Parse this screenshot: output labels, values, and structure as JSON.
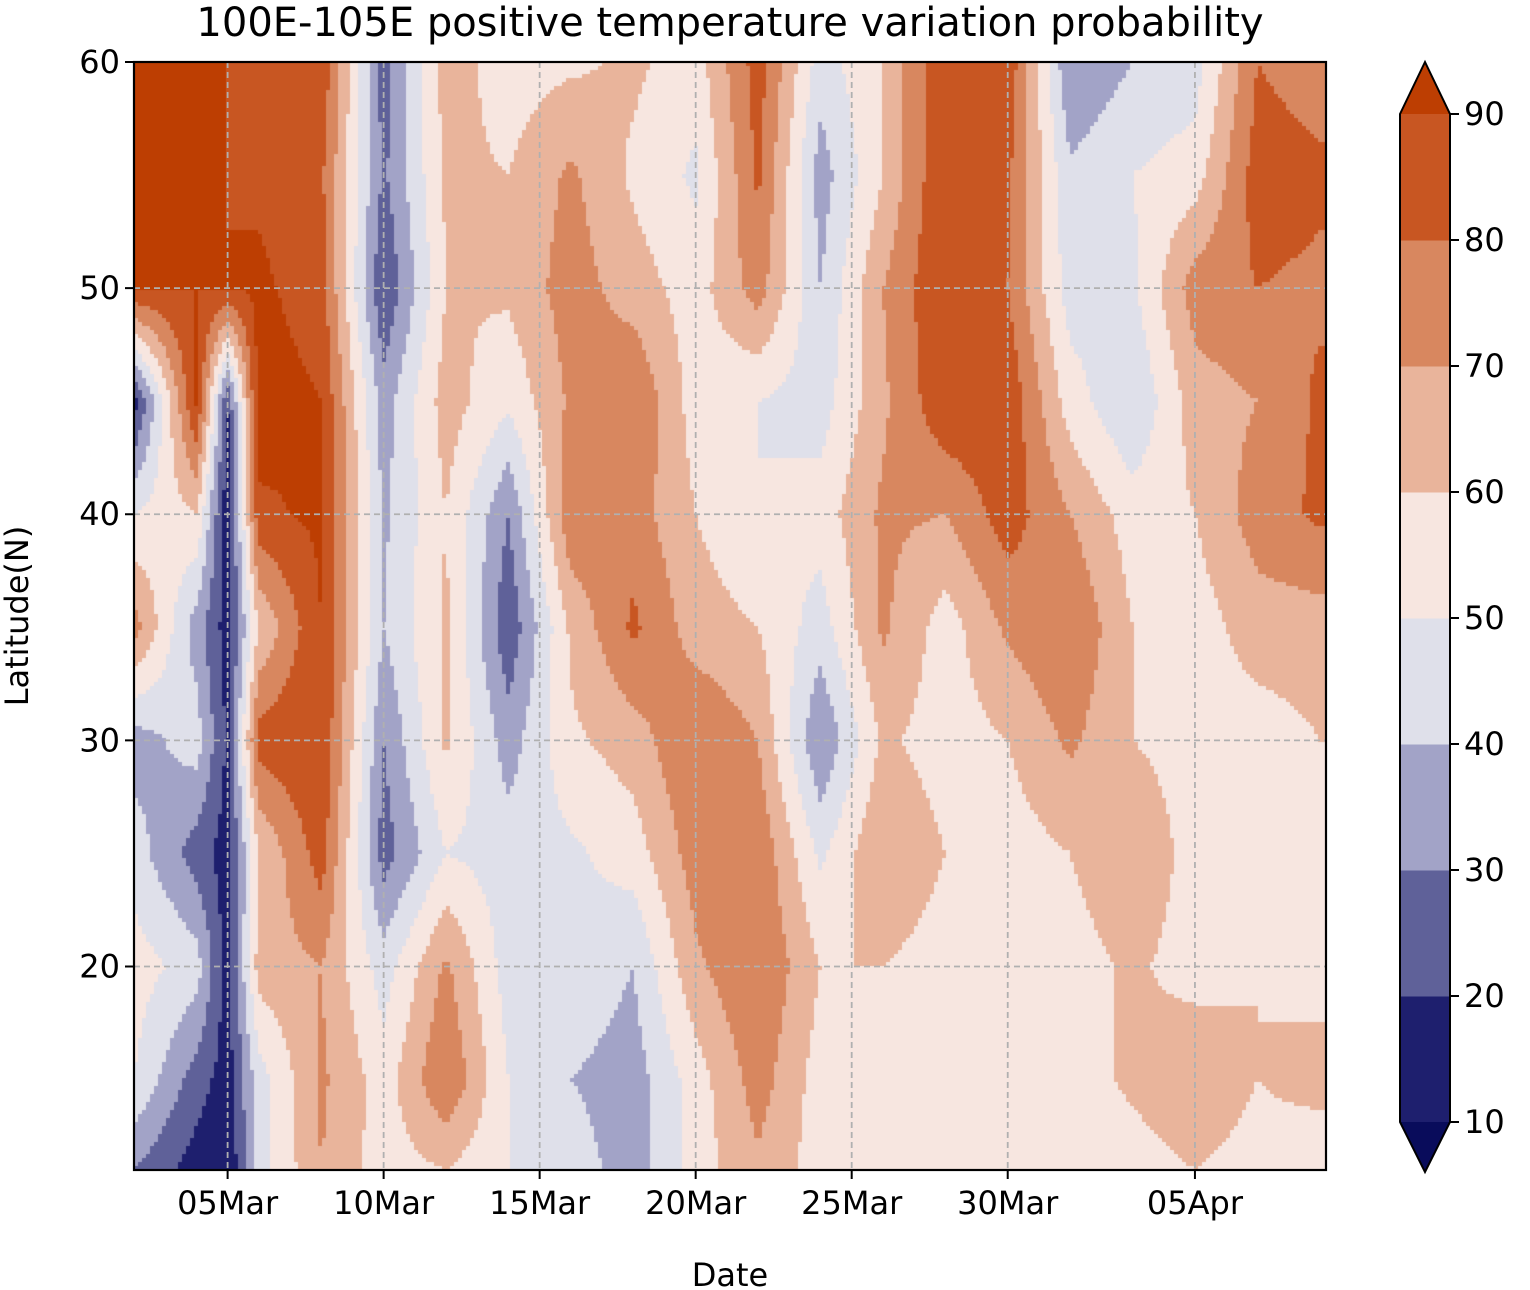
{
  "chart_data": {
    "type": "heatmap",
    "subtype": "filled-contour",
    "title": "100E-105E positive temperature variation probability",
    "xlabel": "Date",
    "ylabel": "Latitude(N)",
    "x_ticks": [
      "05Mar",
      "10Mar",
      "15Mar",
      "20Mar",
      "25Mar",
      "30Mar",
      "05Apr"
    ],
    "x_tick_days": [
      5,
      10,
      15,
      20,
      25,
      30,
      36
    ],
    "xlim": [
      2,
      40.2
    ],
    "y_ticks": [
      20,
      30,
      40,
      50,
      60
    ],
    "ylim": [
      11,
      60
    ],
    "grid": true,
    "colorbar": {
      "levels": [
        10,
        20,
        30,
        40,
        50,
        60,
        70,
        80,
        90
      ],
      "tick_labels": [
        "10",
        "20",
        "30",
        "40",
        "50",
        "60",
        "70",
        "80",
        "90"
      ],
      "colors": [
        "#1e1f6e",
        "#5f6199",
        "#a2a3c7",
        "#dfe0ea",
        "#f7e6e0",
        "#e9b49b",
        "#d8875f",
        "#c85622",
        "#bd3e02"
      ],
      "under_color": "#090c5b",
      "over_color": "#bd3e02",
      "extend": "both"
    },
    "field": {
      "units": "percent",
      "days": [
        2,
        4,
        5,
        6,
        8,
        10,
        12,
        14,
        16,
        18,
        20,
        22,
        24,
        26,
        28,
        30,
        32,
        34,
        36,
        38,
        40
      ],
      "latitudes": [
        60,
        55,
        50,
        45,
        40,
        35,
        30,
        25,
        20,
        15,
        11
      ],
      "values": [
        [
          90,
          90,
          90,
          90,
          88,
          25,
          65,
          55,
          58,
          62,
          55,
          85,
          45,
          60,
          90,
          88,
          30,
          40,
          45,
          80,
          75
        ],
        [
          90,
          90,
          90,
          88,
          82,
          28,
          62,
          60,
          72,
          58,
          48,
          82,
          35,
          60,
          90,
          82,
          42,
          50,
          55,
          85,
          82
        ],
        [
          90,
          90,
          90,
          92,
          85,
          20,
          60,
          62,
          75,
          65,
          55,
          75,
          40,
          70,
          90,
          80,
          45,
          48,
          75,
          80,
          78
        ],
        [
          15,
          92,
          20,
          95,
          90,
          35,
          65,
          52,
          72,
          80,
          55,
          50,
          45,
          68,
          88,
          88,
          55,
          40,
          65,
          70,
          82
        ],
        [
          50,
          60,
          12,
          88,
          92,
          38,
          60,
          30,
          78,
          75,
          60,
          50,
          55,
          72,
          70,
          85,
          70,
          55,
          60,
          75,
          82
        ],
        [
          75,
          35,
          15,
          60,
          90,
          40,
          62,
          22,
          62,
          82,
          65,
          60,
          45,
          72,
          55,
          72,
          80,
          60,
          55,
          65,
          65
        ],
        [
          35,
          45,
          18,
          85,
          90,
          30,
          62,
          35,
          58,
          65,
          80,
          70,
          30,
          62,
          55,
          60,
          72,
          60,
          55,
          55,
          60
        ],
        [
          45,
          25,
          15,
          60,
          85,
          25,
          50,
          45,
          48,
          55,
          75,
          78,
          48,
          70,
          60,
          55,
          60,
          70,
          55,
          58,
          55
        ],
        [
          55,
          45,
          15,
          65,
          70,
          45,
          72,
          45,
          48,
          40,
          68,
          80,
          60,
          60,
          55,
          50,
          55,
          62,
          55,
          60,
          55
        ],
        [
          50,
          25,
          15,
          45,
          72,
          55,
          80,
          50,
          40,
          35,
          55,
          75,
          55,
          55,
          50,
          55,
          55,
          62,
          70,
          60,
          65
        ],
        [
          30,
          15,
          10,
          45,
          70,
          55,
          60,
          50,
          45,
          35,
          55,
          68,
          55,
          50,
          55,
          60,
          55,
          55,
          60,
          55,
          50
        ]
      ]
    }
  }
}
